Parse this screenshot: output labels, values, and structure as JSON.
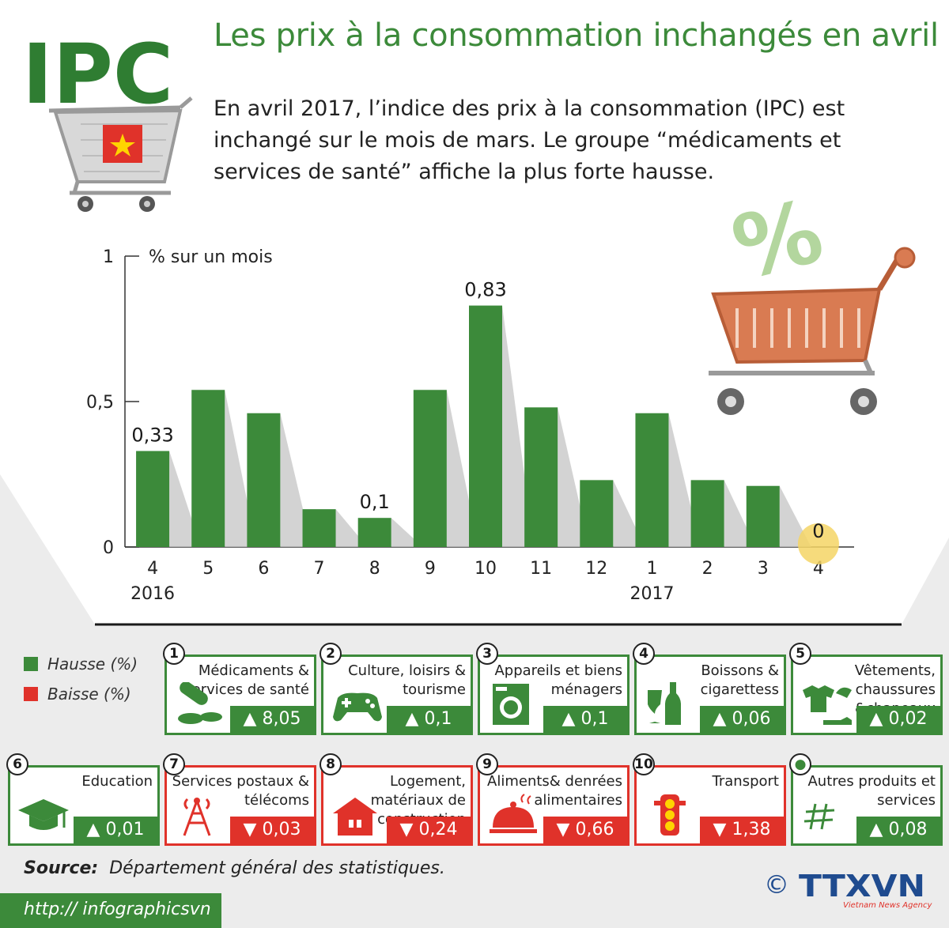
{
  "logo_text": "IPC",
  "title": "Les prix à la consommation inchangés en avril",
  "intro": "En avril 2017, l’indice des prix à la consommation (IPC) est inchangé sur le mois de mars. Le groupe “médicaments et services de santé” affiche la plus forte hausse.",
  "chart_data": {
    "type": "bar",
    "ylabel": "% sur un mois",
    "ylim": [
      0,
      1
    ],
    "yticks": [
      "0",
      "0,5",
      "1"
    ],
    "categories": [
      "4",
      "5",
      "6",
      "7",
      "8",
      "9",
      "10",
      "11",
      "12",
      "1",
      "2",
      "3",
      "4"
    ],
    "year_labels": [
      {
        "label": "2016",
        "at_index": 0
      },
      {
        "label": "2017",
        "at_index": 9
      }
    ],
    "values": [
      0.33,
      0.54,
      0.46,
      0.13,
      0.1,
      0.54,
      0.83,
      0.48,
      0.23,
      0.46,
      0.23,
      0.21,
      0
    ],
    "data_labels": {
      "0": "0,33",
      "4": "0,1",
      "6": "0,83",
      "12": "0"
    },
    "bar_color": "#3c8a3a",
    "grid": false
  },
  "legend": {
    "hausse": "Hausse (%)",
    "baisse": "Baisse (%)",
    "hausse_color": "#3c8a3a",
    "baisse_color": "#e0322a"
  },
  "groups": [
    {
      "num": "1",
      "label": "Médicaments & services de santé",
      "value": "8,05",
      "dir": "up",
      "icon": "pills-icon"
    },
    {
      "num": "2",
      "label": "Culture, loisirs & tourisme",
      "value": "0,1",
      "dir": "up",
      "icon": "gamepad-icon"
    },
    {
      "num": "3",
      "label": "Appareils et biens ménagers",
      "value": "0,1",
      "dir": "up",
      "icon": "washing-machine-icon"
    },
    {
      "num": "4",
      "label": "Boissons & cigarettess",
      "value": "0,06",
      "dir": "up",
      "icon": "drinks-icon"
    },
    {
      "num": "5",
      "label": "Vêtements, chaussures &chapeaux",
      "value": "0,02",
      "dir": "up",
      "icon": "clothes-icon"
    },
    {
      "num": "6",
      "label": "Education",
      "value": "0,01",
      "dir": "up",
      "icon": "graduation-cap-icon"
    },
    {
      "num": "7",
      "label": "Services postaux & télécoms",
      "value": "0,03",
      "dir": "down",
      "icon": "antenna-icon"
    },
    {
      "num": "8",
      "label": "Logement, matériaux de construction",
      "value": "0,24",
      "dir": "down",
      "icon": "house-icon"
    },
    {
      "num": "9",
      "label": "Aliments& denrées alimentaires",
      "value": "0,66",
      "dir": "down",
      "icon": "food-cloche-icon"
    },
    {
      "num": "10",
      "label": "Transport",
      "value": "1,38",
      "dir": "down",
      "icon": "traffic-light-icon"
    },
    {
      "num": "●",
      "label": "Autres produits et services",
      "value": "0,08",
      "dir": "up",
      "icon": "hash-icon"
    }
  ],
  "source_label": "Source:",
  "source_text": "Département général des statistiques.",
  "footer_url": "http:// infographicsvn",
  "agency": "TTXVN",
  "agency_sub": "Vietnam News Agency",
  "copyright": "©"
}
